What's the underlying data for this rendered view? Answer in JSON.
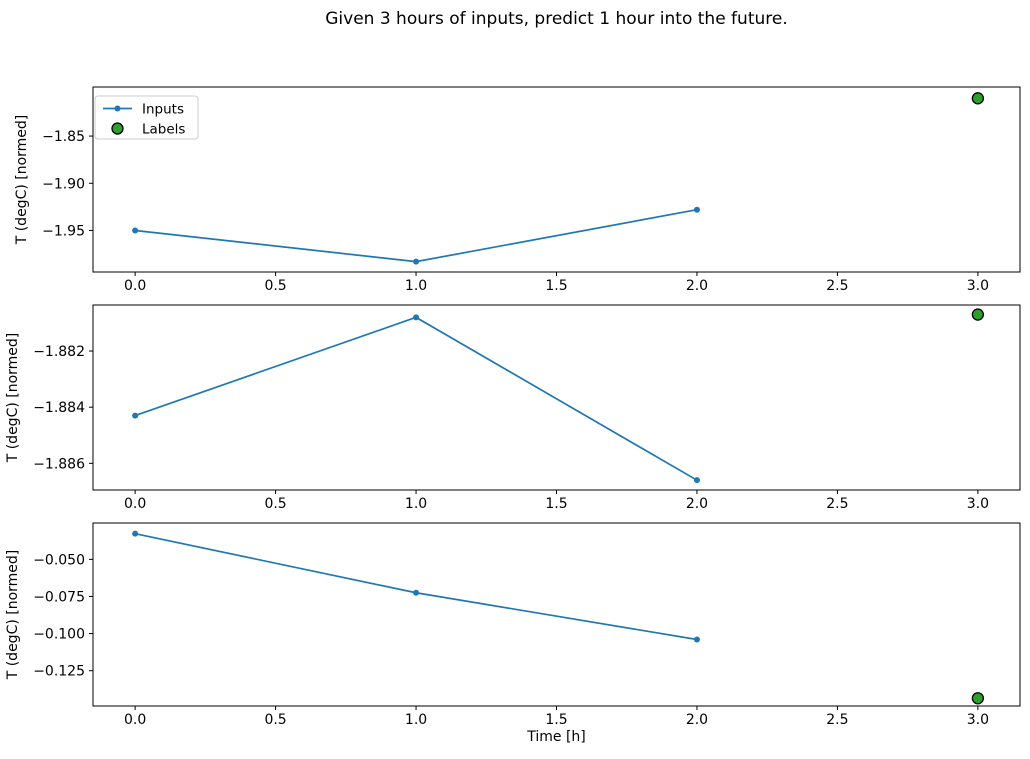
{
  "figure": {
    "title": "Given 3 hours of inputs, predict 1 hour into the future.",
    "background": "#ffffff"
  },
  "colors": {
    "inputs_line": "#1f77b4",
    "labels_marker": "#2ca02c",
    "labels_marker_edge": "#000000",
    "axis": "#000000",
    "legend_border": "#cccccc"
  },
  "legend": {
    "items": [
      {
        "label": "Inputs",
        "swatch": "line-with-dot-marker",
        "color": "#1f77b4"
      },
      {
        "label": "Labels",
        "swatch": "filled-circle",
        "color": "#2ca02c",
        "edge": "#000000"
      }
    ]
  },
  "chart_data": [
    {
      "type": "line",
      "title": "",
      "xlabel": "",
      "ylabel": "T (degC) [normed]",
      "xlim": [
        -0.15,
        3.15
      ],
      "ylim": [
        -1.994,
        -1.798
      ],
      "xticks": {
        "values": [
          0.0,
          0.5,
          1.0,
          1.5,
          2.0,
          2.5,
          3.0
        ],
        "labels": [
          "0.0",
          "0.5",
          "1.0",
          "1.5",
          "2.0",
          "2.5",
          "3.0"
        ]
      },
      "yticks": {
        "values": [
          -1.85,
          -1.9,
          -1.95
        ],
        "labels": [
          "−1.85",
          "−1.90",
          "−1.95"
        ]
      },
      "grid": false,
      "legend": true,
      "legend_position": "upper-left",
      "series": [
        {
          "name": "Inputs",
          "style": "line-marker",
          "color": "#1f77b4",
          "x": [
            0.0,
            1.0,
            2.0
          ],
          "y": [
            -1.95,
            -1.983,
            -1.928
          ]
        },
        {
          "name": "Labels",
          "style": "scatter",
          "color": "#2ca02c",
          "edgecolor": "#000000",
          "x": [
            3.0
          ],
          "y": [
            -1.81
          ]
        }
      ]
    },
    {
      "type": "line",
      "title": "",
      "xlabel": "",
      "ylabel": "T (degC) [normed]",
      "xlim": [
        -0.15,
        3.15
      ],
      "ylim": [
        -1.88695,
        -1.88036
      ],
      "xticks": {
        "values": [
          0.0,
          0.5,
          1.0,
          1.5,
          2.0,
          2.5,
          3.0
        ],
        "labels": [
          "0.0",
          "0.5",
          "1.0",
          "1.5",
          "2.0",
          "2.5",
          "3.0"
        ]
      },
      "yticks": {
        "values": [
          -1.882,
          -1.884,
          -1.886
        ],
        "labels": [
          "−1.882",
          "−1.884",
          "−1.886"
        ]
      },
      "grid": false,
      "legend": false,
      "series": [
        {
          "name": "Inputs",
          "style": "line-marker",
          "color": "#1f77b4",
          "x": [
            0.0,
            1.0,
            2.0
          ],
          "y": [
            -1.8843,
            -1.8808,
            -1.8866
          ]
        },
        {
          "name": "Labels",
          "style": "scatter",
          "color": "#2ca02c",
          "edgecolor": "#000000",
          "x": [
            3.0
          ],
          "y": [
            -1.8807
          ]
        }
      ]
    },
    {
      "type": "line",
      "title": "",
      "xlabel": "Time [h]",
      "ylabel": "T (degC) [normed]",
      "xlim": [
        -0.15,
        3.15
      ],
      "ylim": [
        -0.1488,
        -0.0255
      ],
      "xticks": {
        "values": [
          0.0,
          0.5,
          1.0,
          1.5,
          2.0,
          2.5,
          3.0
        ],
        "labels": [
          "0.0",
          "0.5",
          "1.0",
          "1.5",
          "2.0",
          "2.5",
          "3.0"
        ]
      },
      "yticks": {
        "values": [
          -0.05,
          -0.075,
          -0.1,
          -0.125
        ],
        "labels": [
          "−0.050",
          "−0.075",
          "−0.100",
          "−0.125"
        ]
      },
      "grid": false,
      "legend": false,
      "series": [
        {
          "name": "Inputs",
          "style": "line-marker",
          "color": "#1f77b4",
          "x": [
            0.0,
            1.0,
            2.0
          ],
          "y": [
            -0.0327,
            -0.0725,
            -0.104
          ]
        },
        {
          "name": "Labels",
          "style": "scatter",
          "color": "#2ca02c",
          "edgecolor": "#000000",
          "x": [
            3.0
          ],
          "y": [
            -0.1436
          ]
        }
      ]
    }
  ]
}
